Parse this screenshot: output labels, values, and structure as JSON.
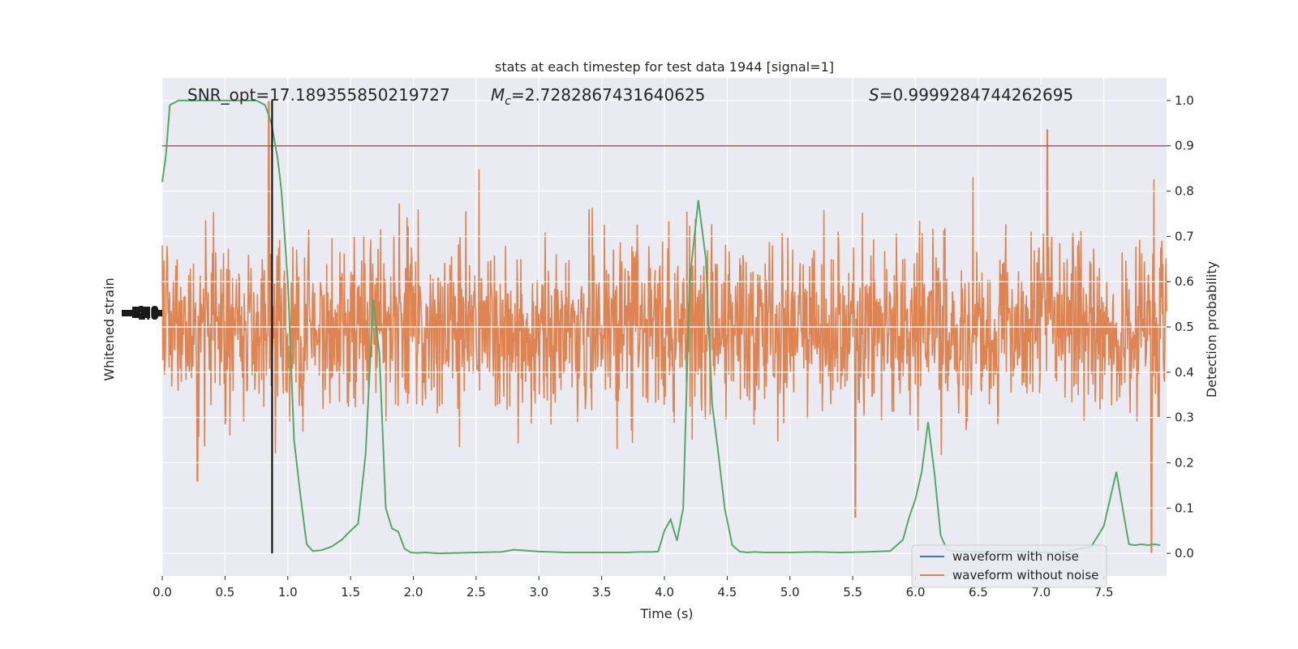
{
  "chart_data": {
    "type": "line",
    "title": "stats at each timestep for test data 1944 [signal=1]",
    "xlabel": "Time (s)",
    "ylabel_left": "Whitened strain",
    "ylabel_right": "Detection probability",
    "xlim": [
      0.0,
      8.0
    ],
    "xticks": [
      0.0,
      0.5,
      1.0,
      1.5,
      2.0,
      2.5,
      3.0,
      3.5,
      4.0,
      4.5,
      5.0,
      5.5,
      6.0,
      6.5,
      7.0,
      7.5
    ],
    "xtick_labels": [
      "0.0",
      "0.5",
      "1.0",
      "1.5",
      "2.0",
      "2.5",
      "3.0",
      "3.5",
      "4.0",
      "4.5",
      "5.0",
      "5.5",
      "6.0",
      "6.5",
      "7.0",
      "7.5"
    ],
    "ylim_right": [
      -0.05,
      1.05
    ],
    "yticks_right": [
      0.0,
      0.1,
      0.2,
      0.3,
      0.4,
      0.5,
      0.6,
      0.7,
      0.8,
      0.9,
      1.0
    ],
    "ytick_labels_right": [
      "0.0",
      "0.1",
      "0.2",
      "0.3",
      "0.4",
      "0.5",
      "0.6",
      "0.7",
      "0.8",
      "0.9",
      "1.0"
    ],
    "left_axis_tick_labels_overlapping": [
      "-1.0",
      "-0.5",
      "0.0",
      "0.5",
      "1.0"
    ],
    "annotations": {
      "snr": "SNR_opt=17.189355850219727",
      "mc": "=2.7282867431640625",
      "mc_symbol": "M",
      "mc_subscript": "c",
      "s": "=0.9999284744262695",
      "s_symbol": "S"
    },
    "threshold": 0.9,
    "vertical_marker_time": 0.875,
    "legend": {
      "position": "lower-right",
      "entries": [
        {
          "label": "waveform with noise",
          "color": "#4c72b0"
        },
        {
          "label": "waveform without noise",
          "color": "#dd8452"
        }
      ]
    },
    "noise_band": {
      "center": 0.5,
      "typical_half_width": 0.16,
      "max_half_width": 0.42
    },
    "noise_peaks": [
      {
        "t": 0.85,
        "v": 1.0
      },
      {
        "t": 7.05,
        "v": 0.935
      },
      {
        "t": 7.88,
        "v": 0.0
      },
      {
        "t": 0.28,
        "v": 0.16
      },
      {
        "t": 5.52,
        "v": 0.08
      }
    ],
    "detection_probability": {
      "name": "detection probability",
      "color": "#55a868",
      "x": [
        0.0,
        0.03,
        0.06,
        0.13,
        0.2,
        0.3,
        0.4,
        0.5,
        0.6,
        0.7,
        0.75,
        0.82,
        0.87,
        0.92,
        0.95,
        1.0,
        1.05,
        1.1,
        1.15,
        1.2,
        1.27,
        1.35,
        1.43,
        1.5,
        1.56,
        1.62,
        1.68,
        1.73,
        1.78,
        1.83,
        1.88,
        1.93,
        1.98,
        2.03,
        2.1,
        2.2,
        2.5,
        2.7,
        2.8,
        2.9,
        3.0,
        3.1,
        3.2,
        3.5,
        3.7,
        3.8,
        3.9,
        3.95,
        4.0,
        4.05,
        4.1,
        4.15,
        4.2,
        4.27,
        4.33,
        4.38,
        4.43,
        4.48,
        4.54,
        4.6,
        4.66,
        4.72,
        4.8,
        5.0,
        5.2,
        5.4,
        5.6,
        5.8,
        5.9,
        5.95,
        6.0,
        6.05,
        6.1,
        6.15,
        6.2,
        6.25,
        6.3,
        6.35,
        6.4,
        6.45,
        6.5,
        6.8,
        7.0,
        7.2,
        7.3,
        7.4,
        7.5,
        7.6,
        7.65,
        7.7,
        7.75,
        7.8,
        7.85,
        7.9,
        7.95
      ],
      "values": [
        0.82,
        0.88,
        0.99,
        1.0,
        1.0,
        1.0,
        1.0,
        1.0,
        1.0,
        1.0,
        1.0,
        0.99,
        0.95,
        0.87,
        0.8,
        0.6,
        0.25,
        0.13,
        0.02,
        0.005,
        0.007,
        0.015,
        0.03,
        0.05,
        0.065,
        0.22,
        0.56,
        0.44,
        0.1,
        0.055,
        0.048,
        0.01,
        0.002,
        0.001,
        0.002,
        0.0,
        0.002,
        0.003,
        0.008,
        0.006,
        0.004,
        0.003,
        0.002,
        0.002,
        0.002,
        0.003,
        0.003,
        0.004,
        0.05,
        0.075,
        0.028,
        0.1,
        0.6,
        0.78,
        0.65,
        0.33,
        0.22,
        0.1,
        0.018,
        0.004,
        0.002,
        0.003,
        0.002,
        0.002,
        0.003,
        0.002,
        0.003,
        0.005,
        0.03,
        0.08,
        0.12,
        0.18,
        0.29,
        0.18,
        0.04,
        0.008,
        0.005,
        0.004,
        0.003,
        0.004,
        0.003,
        0.005,
        0.002,
        0.003,
        0.01,
        0.015,
        0.06,
        0.18,
        0.1,
        0.02,
        0.018,
        0.02,
        0.018,
        0.02,
        0.018
      ]
    }
  }
}
